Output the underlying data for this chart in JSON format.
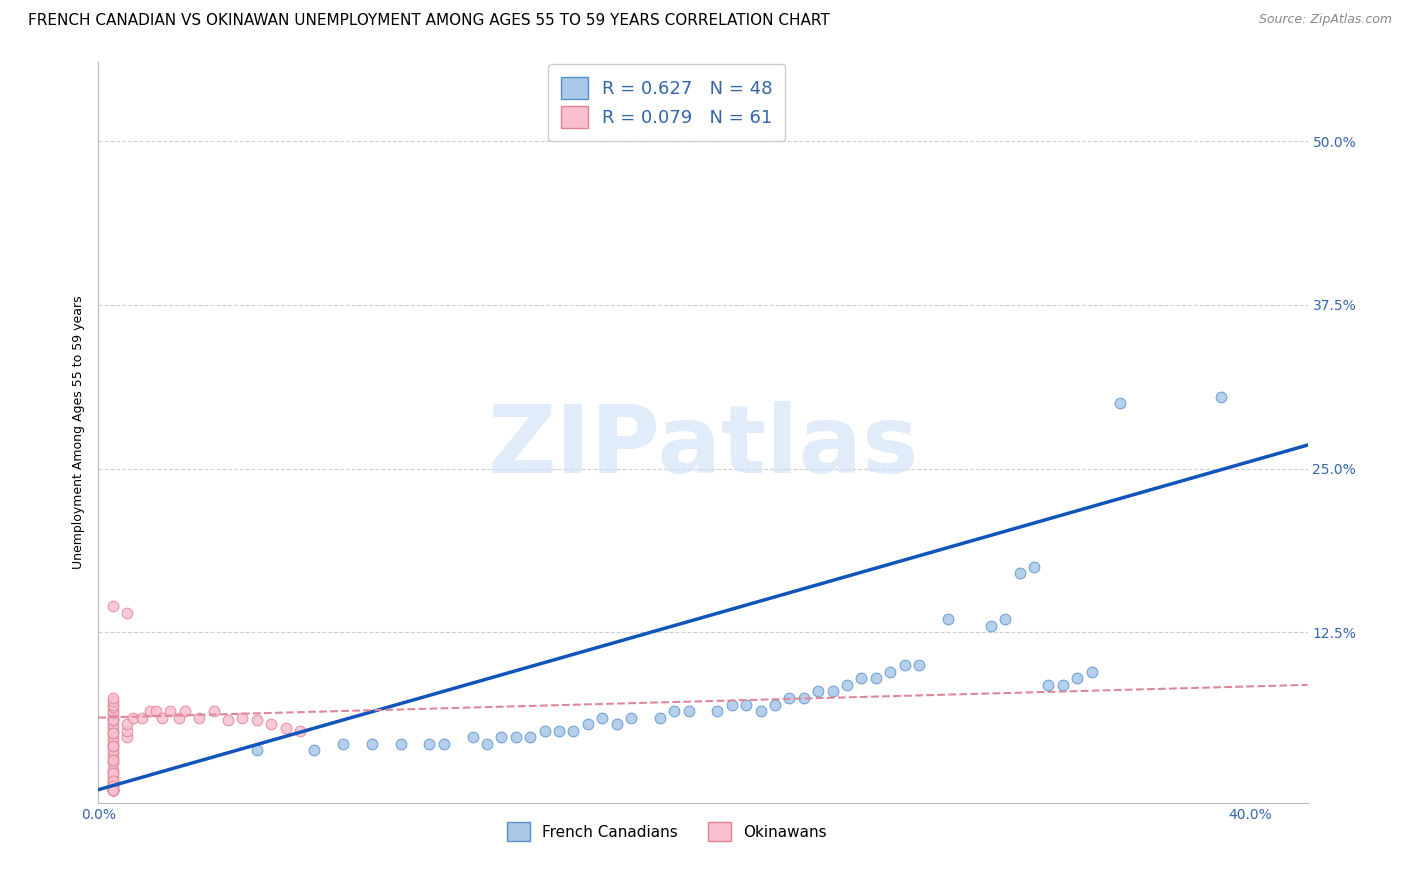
{
  "title": "FRENCH CANADIAN VS OKINAWAN UNEMPLOYMENT AMONG AGES 55 TO 59 YEARS CORRELATION CHART",
  "source": "Source: ZipAtlas.com",
  "ylabel": "Unemployment Among Ages 55 to 59 years",
  "xlim": [
    0.0,
    0.42
  ],
  "ylim": [
    -0.005,
    0.56
  ],
  "xticks": [
    0.0,
    0.4
  ],
  "xtick_labels": [
    "0.0%",
    "40.0%"
  ],
  "yticks": [
    0.125,
    0.25,
    0.375,
    0.5
  ],
  "ytick_labels": [
    "12.5%",
    "25.0%",
    "37.5%",
    "50.0%"
  ],
  "background_color": "#ffffff",
  "grid_color": "#d0d0d0",
  "watermark": "ZIPatlas",
  "legend_R_blue": "0.627",
  "legend_N_blue": "48",
  "legend_R_pink": "0.079",
  "legend_N_pink": "61",
  "blue_scatter_x": [
    0.055,
    0.075,
    0.085,
    0.095,
    0.105,
    0.115,
    0.12,
    0.13,
    0.135,
    0.14,
    0.145,
    0.15,
    0.155,
    0.16,
    0.165,
    0.17,
    0.175,
    0.18,
    0.185,
    0.195,
    0.2,
    0.205,
    0.215,
    0.22,
    0.225,
    0.23,
    0.235,
    0.24,
    0.245,
    0.25,
    0.255,
    0.26,
    0.265,
    0.27,
    0.275,
    0.28,
    0.285,
    0.295,
    0.31,
    0.315,
    0.32,
    0.325,
    0.33,
    0.335,
    0.34,
    0.345,
    0.355,
    0.39
  ],
  "blue_scatter_y": [
    0.035,
    0.035,
    0.04,
    0.04,
    0.04,
    0.04,
    0.04,
    0.045,
    0.04,
    0.045,
    0.045,
    0.045,
    0.05,
    0.05,
    0.05,
    0.055,
    0.06,
    0.055,
    0.06,
    0.06,
    0.065,
    0.065,
    0.065,
    0.07,
    0.07,
    0.065,
    0.07,
    0.075,
    0.075,
    0.08,
    0.08,
    0.085,
    0.09,
    0.09,
    0.095,
    0.1,
    0.1,
    0.135,
    0.13,
    0.135,
    0.17,
    0.175,
    0.085,
    0.085,
    0.09,
    0.095,
    0.3,
    0.305
  ],
  "pink_scatter_x": [
    0.005,
    0.005,
    0.005,
    0.005,
    0.005,
    0.005,
    0.005,
    0.005,
    0.005,
    0.005,
    0.005,
    0.005,
    0.005,
    0.005,
    0.005,
    0.005,
    0.005,
    0.005,
    0.005,
    0.005,
    0.005,
    0.005,
    0.005,
    0.005,
    0.005,
    0.005,
    0.005,
    0.005,
    0.005,
    0.005,
    0.005,
    0.005,
    0.005,
    0.005,
    0.005,
    0.005,
    0.005,
    0.005,
    0.005,
    0.005,
    0.01,
    0.01,
    0.01,
    0.012,
    0.015,
    0.018,
    0.02,
    0.022,
    0.025,
    0.028,
    0.03,
    0.035,
    0.04,
    0.045,
    0.05,
    0.055,
    0.06,
    0.065,
    0.07,
    0.01,
    0.005
  ],
  "pink_scatter_y": [
    0.005,
    0.008,
    0.01,
    0.012,
    0.015,
    0.018,
    0.02,
    0.025,
    0.028,
    0.03,
    0.033,
    0.035,
    0.038,
    0.04,
    0.043,
    0.045,
    0.048,
    0.05,
    0.053,
    0.055,
    0.058,
    0.06,
    0.063,
    0.065,
    0.068,
    0.07,
    0.073,
    0.075,
    0.058,
    0.048,
    0.038,
    0.028,
    0.018,
    0.012,
    0.008,
    0.005,
    0.005,
    0.005,
    0.005,
    0.005,
    0.045,
    0.05,
    0.055,
    0.06,
    0.06,
    0.065,
    0.065,
    0.06,
    0.065,
    0.06,
    0.065,
    0.06,
    0.065,
    0.058,
    0.06,
    0.058,
    0.055,
    0.052,
    0.05,
    0.14,
    0.145
  ],
  "blue_color": "#aac8e8",
  "blue_edge_color": "#5590cc",
  "pink_color": "#f8c0d0",
  "pink_edge_color": "#e08090",
  "trend_blue_color": "#1155bb",
  "trend_pink_color": "#dd8899",
  "trend_blue_start_y": 0.005,
  "trend_blue_end_y": 0.268,
  "trend_pink_start_y": 0.06,
  "trend_pink_end_y": 0.085,
  "scatter_size": 60,
  "title_fontsize": 11,
  "axis_label_fontsize": 9,
  "tick_fontsize": 10,
  "legend_fontsize": 13
}
